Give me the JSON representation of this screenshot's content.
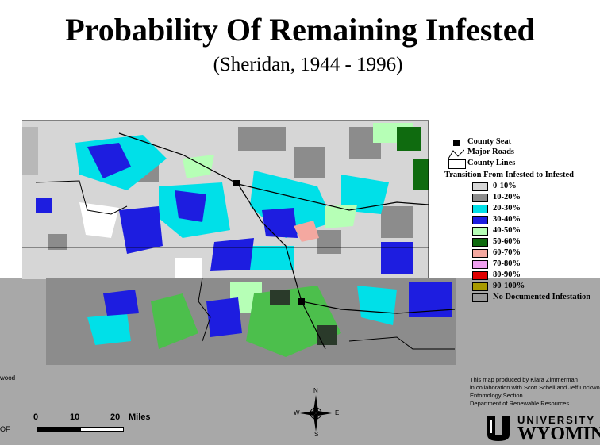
{
  "title": "Probability Of Remaining Infested",
  "subtitle": "(Sheridan, 1944 - 1996)",
  "legend": {
    "symbols": [
      {
        "icon": "county-seat-square-icon",
        "label": "County Seat"
      },
      {
        "icon": "major-roads-line-icon",
        "label": "Major Roads"
      },
      {
        "icon": "county-lines-box-icon",
        "label": "County Lines"
      }
    ],
    "title": "Transition From Infested to Infested",
    "classes": [
      {
        "label": "0-10%",
        "color": "#d6d6d6"
      },
      {
        "label": "10-20%",
        "color": "#8c8c8c"
      },
      {
        "label": "20-30%",
        "color": "#00e0e8"
      },
      {
        "label": "30-40%",
        "color": "#1d1de0"
      },
      {
        "label": "40-50%",
        "color": "#b6ffb6"
      },
      {
        "label": "50-60%",
        "color": "#0f6b0f"
      },
      {
        "label": "60-70%",
        "color": "#f4a8a0"
      },
      {
        "label": "70-80%",
        "color": "#f0a0f0"
      },
      {
        "label": "80-90%",
        "color": "#e00000"
      },
      {
        "label": "90-100%",
        "color": "#a89a00"
      },
      {
        "label": "No Documented Infestation",
        "color": "#9a9a9a"
      }
    ]
  },
  "credit": [
    "This map produced by Kiara Zimmerman",
    "in collaboration with Scott Schell and Jeff Lockwood",
    "Entomology Section",
    "Department of Renewable Resources"
  ],
  "scale": {
    "ticks": [
      "0",
      "10",
      "20"
    ],
    "unit": "Miles"
  },
  "compass": {
    "n": "N",
    "s": "S",
    "e": "E",
    "w": "W"
  },
  "left_fragments": {
    "top": "wood",
    "bottom": "OF"
  },
  "logo": {
    "line1": "UNIVERSITY",
    "line2": "WYOMING"
  }
}
